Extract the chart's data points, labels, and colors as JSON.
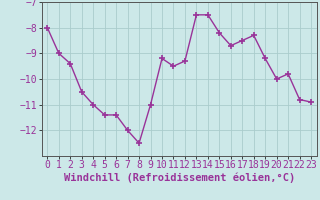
{
  "x": [
    0,
    1,
    2,
    3,
    4,
    5,
    6,
    7,
    8,
    9,
    10,
    11,
    12,
    13,
    14,
    15,
    16,
    17,
    18,
    19,
    20,
    21,
    22,
    23
  ],
  "y": [
    -8.0,
    -9.0,
    -9.4,
    -10.5,
    -11.0,
    -11.4,
    -11.4,
    -12.0,
    -12.5,
    -11.0,
    -9.2,
    -9.5,
    -9.3,
    -7.5,
    -7.5,
    -8.2,
    -8.7,
    -8.5,
    -8.3,
    -9.2,
    -10.0,
    -9.8,
    -10.8,
    -10.9
  ],
  "line_color": "#993399",
  "marker": "+",
  "bg_color": "#cce8e8",
  "grid_color": "#aacccc",
  "xlabel": "Windchill (Refroidissement éolien,°C)",
  "xlim": [
    -0.5,
    23.5
  ],
  "ylim": [
    -13.0,
    -7.0
  ],
  "yticks": [
    -12,
    -11,
    -10,
    -9,
    -8,
    -7
  ],
  "xticks": [
    0,
    1,
    2,
    3,
    4,
    5,
    6,
    7,
    8,
    9,
    10,
    11,
    12,
    13,
    14,
    15,
    16,
    17,
    18,
    19,
    20,
    21,
    22,
    23
  ],
  "xlabel_fontsize": 7.5,
  "tick_fontsize": 7.0,
  "line_width": 1.0,
  "marker_size": 5
}
